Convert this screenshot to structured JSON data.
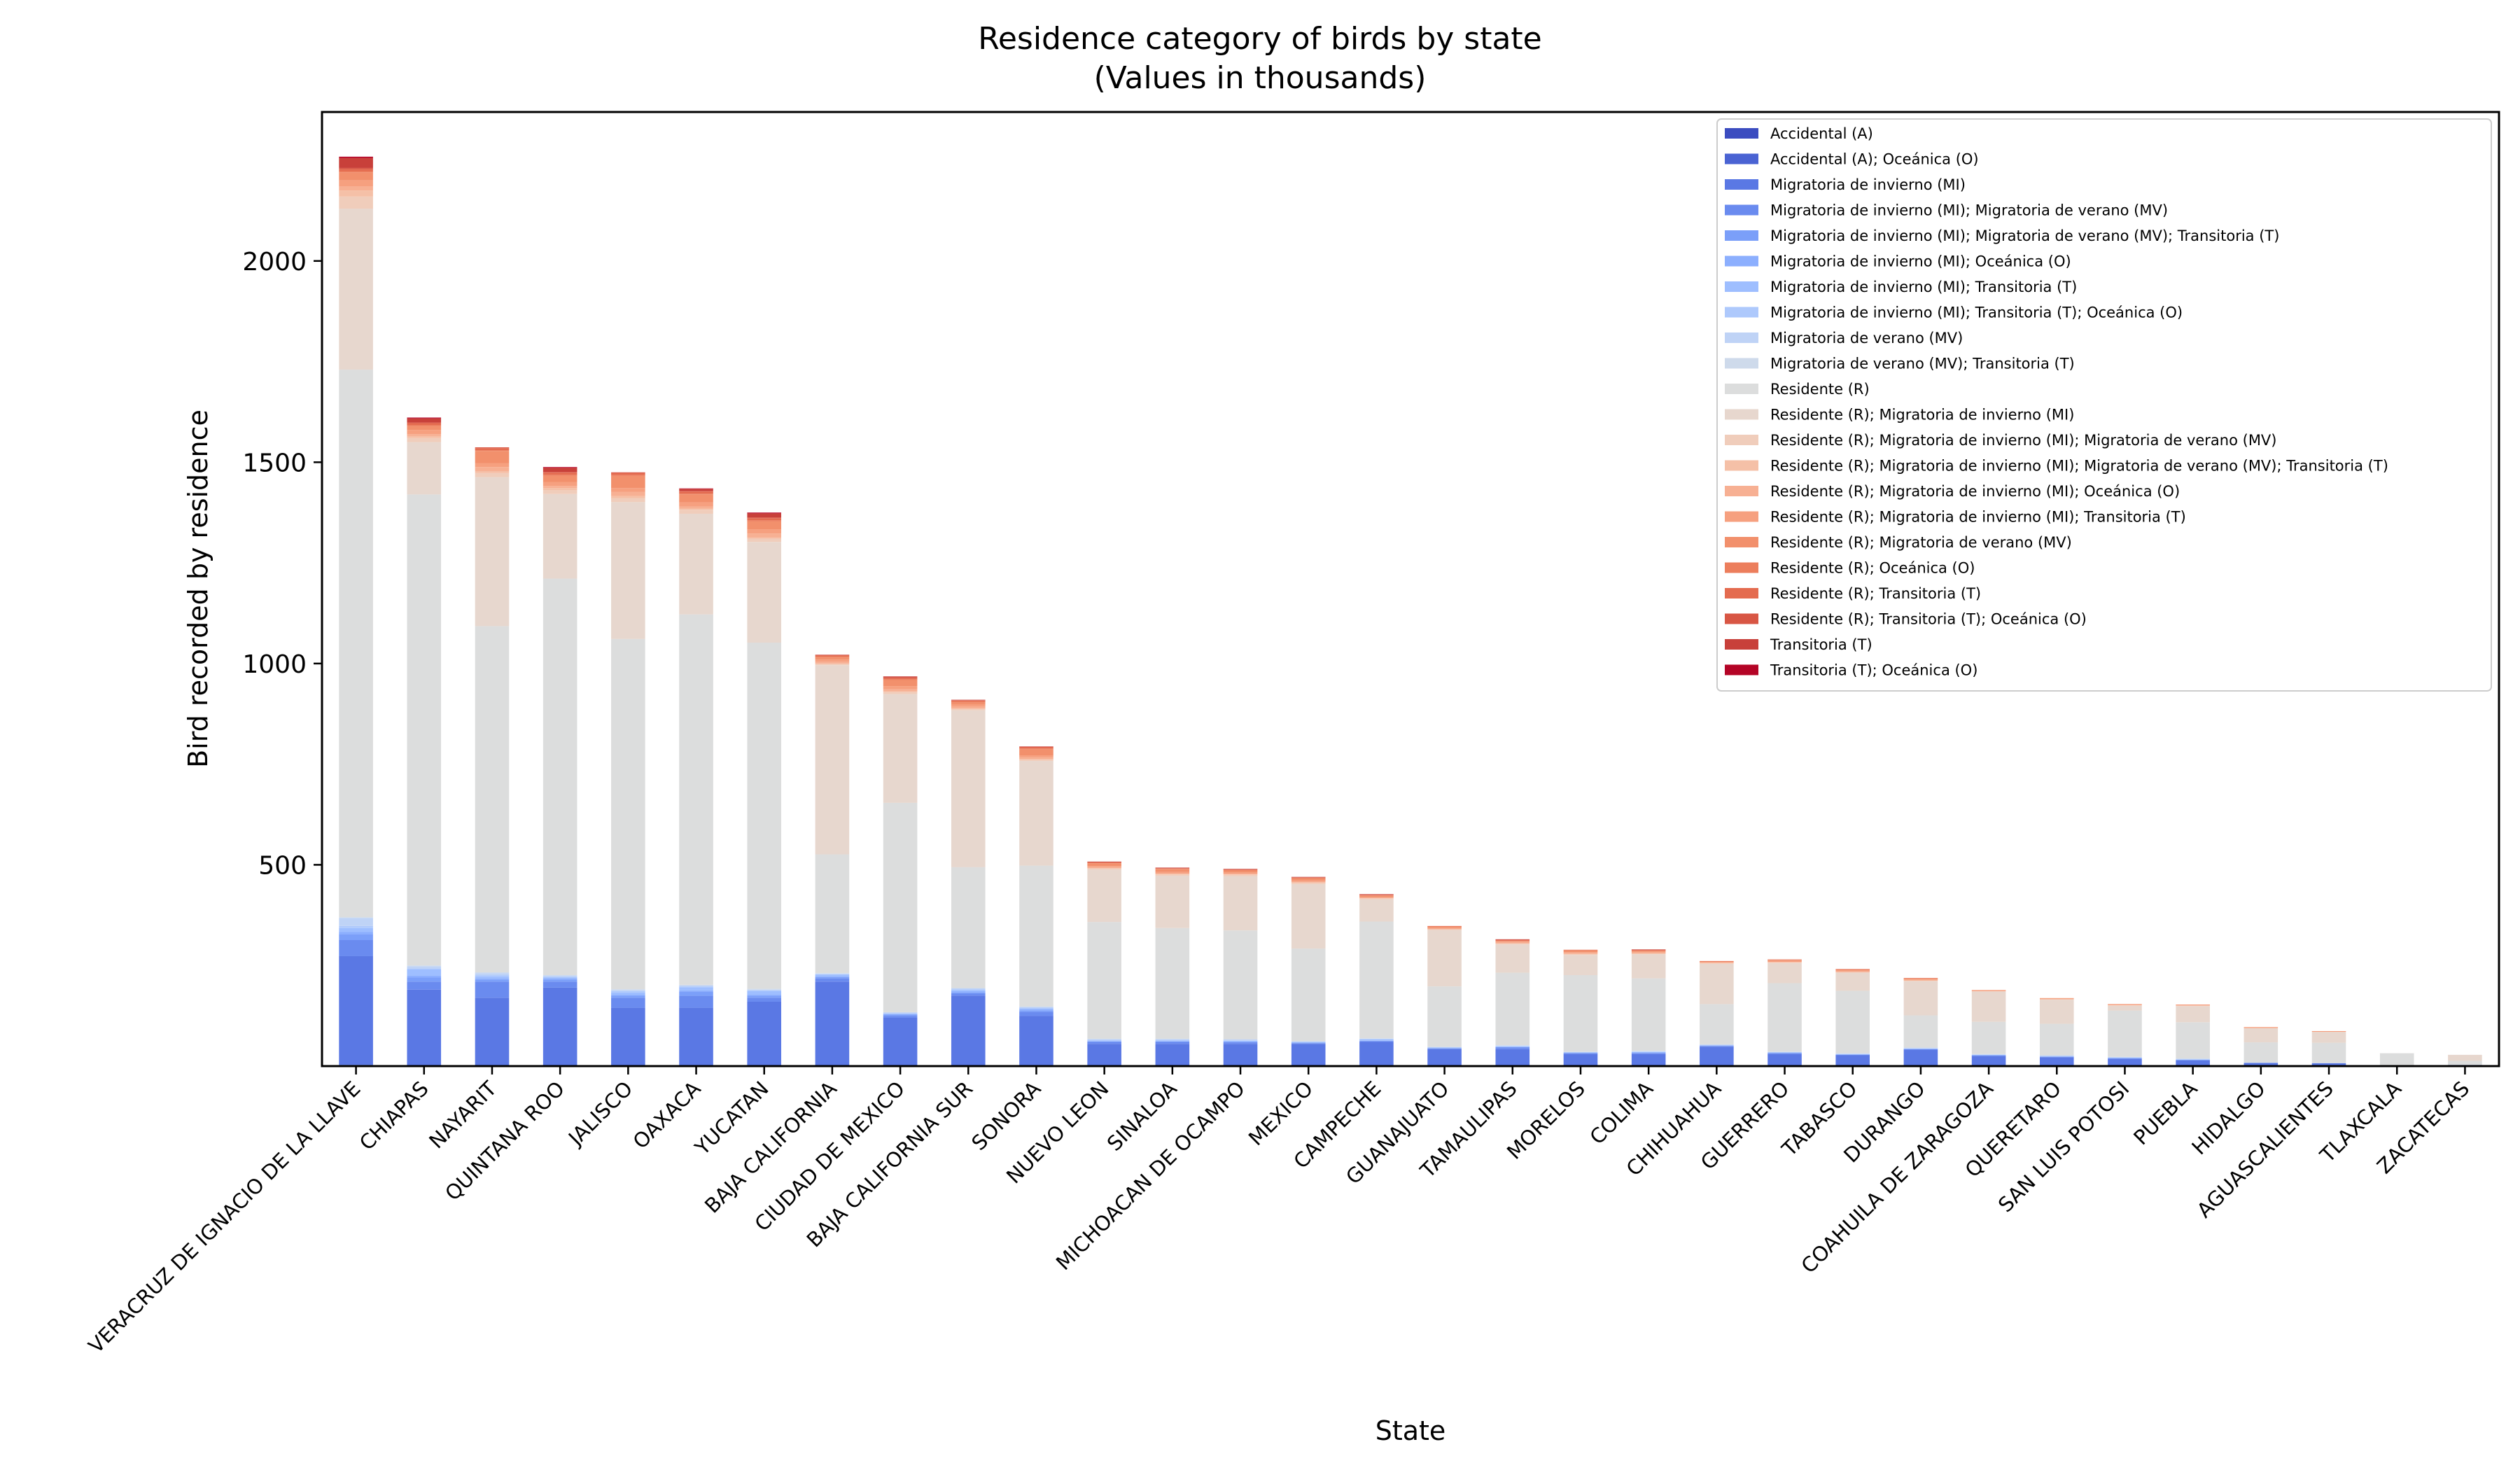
{
  "chart_data": {
    "type": "bar",
    "stacked": true,
    "title": "Residence category of birds by state",
    "subtitle": "(Values in thousands)",
    "xlabel": "State",
    "ylabel": "Bird recorded by residence",
    "ylim": [
      0,
      2370
    ],
    "yticks": [
      500,
      1000,
      1500,
      2000
    ],
    "grid": false,
    "legend_position": "top-right",
    "categories": [
      "VERACRUZ DE IGNACIO DE LA LLAVE",
      "CHIAPAS",
      "NAYARIT",
      "QUINTANA ROO",
      "JALISCO",
      "OAXACA",
      "YUCATAN",
      "BAJA CALIFORNIA",
      "CIUDAD DE MEXICO",
      "BAJA CALIFORNIA SUR",
      "SONORA",
      "NUEVO LEON",
      "SINALOA",
      "MICHOACAN DE OCAMPO",
      "MEXICO",
      "CAMPECHE",
      "GUANAJUATO",
      "TAMAULIPAS",
      "MORELOS",
      "COLIMA",
      "CHIHUAHUA",
      "GUERRERO",
      "TABASCO",
      "DURANGO",
      "COAHUILA DE ZARAGOZA",
      "QUERETARO",
      "SAN LUIS POTOSI",
      "PUEBLA",
      "HIDALGO",
      "AGUASCALIENTES",
      "TLAXCALA",
      "ZACATECAS"
    ],
    "series": [
      {
        "name": "Accidental (A)",
        "color": "#3b4cc0",
        "values": [
          2,
          0,
          0,
          0,
          0,
          0,
          0,
          0,
          0,
          0,
          0,
          0,
          0,
          0,
          0,
          0,
          0,
          0,
          0,
          0,
          0,
          0,
          0,
          0,
          0,
          0,
          0,
          0,
          0,
          0,
          0,
          0
        ]
      },
      {
        "name": "Accidental (A); Oceánica (O)",
        "color": "#4a63d3",
        "values": [
          1,
          0,
          0,
          0,
          0,
          0,
          0,
          0,
          0,
          0,
          0,
          0,
          0,
          0,
          0,
          0,
          0,
          0,
          0,
          0,
          0,
          0,
          0,
          0,
          0,
          0,
          0,
          0,
          0,
          0,
          0,
          0
        ]
      },
      {
        "name": "Migratoria de invierno (MI)",
        "color": "#5a78e4",
        "values": [
          270,
          190,
          170,
          195,
          145,
          145,
          160,
          210,
          120,
          175,
          125,
          55,
          55,
          55,
          55,
          60,
          42,
          42,
          30,
          30,
          48,
          30,
          27,
          40,
          25,
          22,
          18,
          14,
          8,
          7,
          2,
          3
        ]
      },
      {
        "name": "Migratoria de invierno (MI); Migratoria de verano (MV)",
        "color": "#6a8bef",
        "values": [
          40,
          20,
          40,
          15,
          25,
          30,
          10,
          8,
          5,
          5,
          10,
          5,
          5,
          4,
          2,
          2,
          2,
          4,
          2,
          2,
          2,
          2,
          1,
          2,
          1,
          1,
          1,
          1,
          0,
          0,
          0,
          0
        ]
      },
      {
        "name": "Migratoria de invierno (MI); Migratoria de verano (MV); Transitoria (T)",
        "color": "#7b9ff9",
        "values": [
          15,
          10,
          5,
          5,
          5,
          10,
          5,
          3,
          3,
          3,
          3,
          1,
          1,
          1,
          1,
          1,
          1,
          1,
          1,
          1,
          1,
          1,
          1,
          1,
          1,
          1,
          1,
          1,
          0,
          0,
          0,
          0
        ]
      },
      {
        "name": "Migratoria de invierno (MI); Oceánica (O)",
        "color": "#8caffe",
        "values": [
          5,
          5,
          3,
          3,
          3,
          3,
          3,
          3,
          1,
          3,
          3,
          1,
          1,
          1,
          0,
          1,
          0,
          1,
          0,
          1,
          0,
          0,
          0,
          0,
          0,
          0,
          0,
          0,
          0,
          0,
          0,
          0
        ]
      },
      {
        "name": "Migratoria de invierno (MI); Transitoria (T)",
        "color": "#9ebeff",
        "values": [
          10,
          15,
          5,
          2,
          5,
          8,
          8,
          3,
          2,
          3,
          3,
          2,
          2,
          2,
          2,
          2,
          1,
          1,
          1,
          1,
          1,
          1,
          1,
          1,
          1,
          1,
          1,
          1,
          0,
          0,
          0,
          0
        ]
      },
      {
        "name": "Migratoria de invierno (MI); Transitoria (T); Oceánica (O)",
        "color": "#aec9fc",
        "values": [
          5,
          3,
          3,
          2,
          3,
          2,
          2,
          1,
          0,
          2,
          1,
          1,
          1,
          1,
          0,
          1,
          0,
          1,
          0,
          1,
          0,
          0,
          0,
          0,
          0,
          0,
          0,
          0,
          0,
          0,
          0,
          0
        ]
      },
      {
        "name": "Migratoria de verano (MV)",
        "color": "#bfd3f6",
        "values": [
          20,
          5,
          5,
          3,
          3,
          2,
          2,
          2,
          2,
          2,
          2,
          2,
          2,
          2,
          1,
          1,
          1,
          1,
          1,
          1,
          1,
          1,
          1,
          1,
          1,
          1,
          1,
          1,
          1,
          1,
          0,
          0
        ]
      },
      {
        "name": "Migratoria de verano (MV); Transitoria (T)",
        "color": "#cedaeb",
        "values": [
          2,
          2,
          2,
          1,
          2,
          2,
          2,
          1,
          1,
          1,
          1,
          1,
          1,
          1,
          1,
          1,
          1,
          1,
          1,
          1,
          1,
          1,
          1,
          1,
          1,
          1,
          1,
          1,
          0,
          0,
          0,
          0
        ]
      },
      {
        "name": "Residente (R)",
        "color": "#dcdddd",
        "values": [
          1360,
          1170,
          860,
          985,
          870,
          920,
          860,
          295,
          520,
          300,
          350,
          290,
          275,
          270,
          230,
          290,
          150,
          180,
          190,
          180,
          100,
          170,
          155,
          80,
          80,
          78,
          115,
          90,
          50,
          50,
          30,
          10
        ]
      },
      {
        "name": "Residente (R); Migratoria de invierno (MI)",
        "color": "#e7d7ce",
        "values": [
          400,
          130,
          370,
          210,
          340,
          250,
          250,
          470,
          270,
          390,
          260,
          130,
          130,
          135,
          160,
          55,
          140,
          70,
          50,
          60,
          100,
          50,
          45,
          85,
          75,
          60,
          12,
          40,
          35,
          27,
          0,
          15
        ]
      },
      {
        "name": "Residente (R); Migratoria de invierno (MI); Migratoria de verano (MV)",
        "color": "#f0cdbb",
        "values": [
          30,
          10,
          10,
          10,
          10,
          10,
          8,
          3,
          5,
          3,
          3,
          3,
          3,
          3,
          3,
          2,
          2,
          2,
          2,
          1,
          1,
          1,
          1,
          1,
          1,
          1,
          1,
          1,
          0,
          0,
          0,
          0
        ]
      },
      {
        "name": "Residente (R); Migratoria de invierno (MI); Migratoria de verano (MV); Transitoria (T)",
        "color": "#f5c0a7",
        "values": [
          15,
          5,
          5,
          5,
          5,
          3,
          3,
          1,
          2,
          1,
          1,
          1,
          1,
          1,
          1,
          1,
          0,
          1,
          1,
          1,
          1,
          1,
          1,
          1,
          0,
          0,
          0,
          0,
          0,
          0,
          0,
          0
        ]
      },
      {
        "name": "Residente (R); Migratoria de invierno (MI); Oceánica (O)",
        "color": "#f7b093",
        "values": [
          10,
          5,
          10,
          5,
          10,
          5,
          10,
          5,
          5,
          5,
          5,
          2,
          2,
          2,
          2,
          1,
          1,
          2,
          2,
          2,
          1,
          1,
          1,
          1,
          1,
          1,
          1,
          1,
          1,
          0,
          0,
          0
        ]
      },
      {
        "name": "Residente (R); Migratoria de invierno (MI); Transitoria (T)",
        "color": "#f6a07f",
        "values": [
          15,
          10,
          10,
          10,
          10,
          10,
          10,
          5,
          8,
          5,
          5,
          3,
          3,
          3,
          3,
          2,
          2,
          2,
          2,
          2,
          1,
          2,
          2,
          2,
          1,
          1,
          1,
          1,
          1,
          1,
          0,
          0
        ]
      },
      {
        "name": "Residente (R); Migratoria de verano (MV)",
        "color": "#f2906c",
        "values": [
          20,
          10,
          30,
          15,
          30,
          20,
          20,
          5,
          15,
          5,
          15,
          7,
          7,
          5,
          5,
          3,
          3,
          2,
          4,
          2,
          2,
          2,
          2,
          2,
          1,
          1,
          1,
          1,
          1,
          1,
          0,
          0
        ]
      },
      {
        "name": "Residente (R); Oceánica (O)",
        "color": "#ec7e5c",
        "values": [
          3,
          2,
          2,
          3,
          2,
          2,
          3,
          3,
          2,
          3,
          2,
          1,
          1,
          1,
          1,
          1,
          1,
          1,
          1,
          1,
          0,
          1,
          1,
          0,
          0,
          0,
          0,
          0,
          0,
          0,
          0,
          0
        ]
      },
      {
        "name": "Residente (R); Transitoria (T)",
        "color": "#e46b4f",
        "values": [
          5,
          5,
          5,
          5,
          5,
          5,
          5,
          2,
          3,
          2,
          3,
          1,
          1,
          1,
          1,
          1,
          1,
          1,
          1,
          1,
          1,
          1,
          1,
          1,
          0,
          0,
          0,
          0,
          0,
          0,
          0,
          0
        ]
      },
      {
        "name": "Residente (R); Transitoria (T); Oceánica (O)",
        "color": "#d85644",
        "values": [
          3,
          2,
          2,
          2,
          2,
          2,
          2,
          1,
          2,
          1,
          1,
          1,
          1,
          1,
          1,
          1,
          0,
          1,
          0,
          1,
          0,
          0,
          0,
          0,
          0,
          0,
          0,
          0,
          0,
          0,
          0,
          0
        ]
      },
      {
        "name": "Transitoria (T)",
        "color": "#c8403a",
        "values": [
          25,
          10,
          0,
          10,
          0,
          5,
          10,
          1,
          2,
          1,
          1,
          1,
          1,
          1,
          1,
          1,
          0,
          1,
          0,
          1,
          0,
          0,
          0,
          0,
          0,
          0,
          0,
          0,
          0,
          0,
          0,
          0
        ]
      },
      {
        "name": "Transitoria (T); Oceánica (O)",
        "color": "#b40426",
        "values": [
          3,
          2,
          0,
          2,
          0,
          1,
          2,
          0,
          0,
          0,
          0,
          0,
          0,
          0,
          0,
          0,
          0,
          0,
          0,
          0,
          0,
          0,
          0,
          0,
          0,
          0,
          0,
          0,
          0,
          0,
          0,
          0
        ]
      }
    ]
  }
}
